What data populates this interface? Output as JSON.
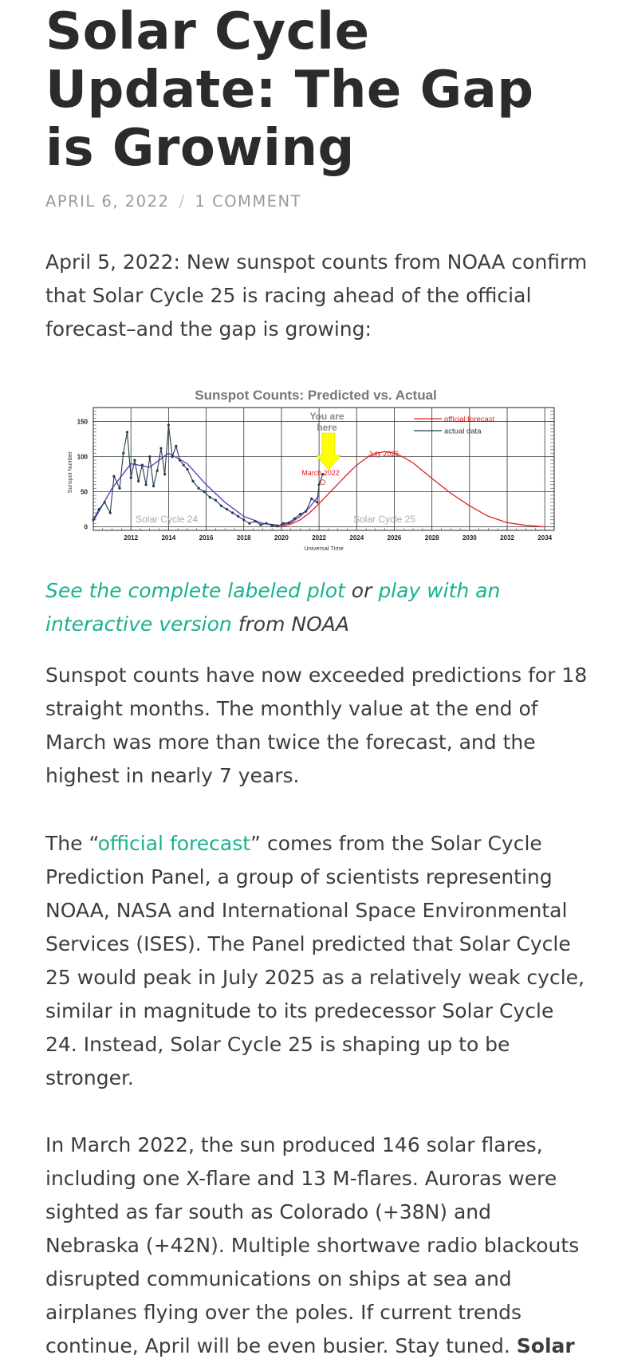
{
  "article": {
    "title": "Solar Cycle Update: The Gap is Growing",
    "date": "APRIL 6, 2022",
    "separator": "/",
    "comments": "1 COMMENT",
    "intro": "April 5, 2022: New sunspot counts from NOAA confirm that Solar Cycle 25 is racing ahead of the official forecast–and the gap is growing:",
    "caption": {
      "link1": "See the complete labeled plot",
      "or": " or ",
      "link2": "play with an interactive version",
      "from": " from NOAA"
    },
    "p2": "Sunspot counts have now exceeded predictions for 18 straight months. The monthly value at the end of March was more than twice the forecast, and the highest in nearly 7 years.",
    "p3": {
      "before": "The “",
      "link": "official forecast",
      "after": "” comes from the Solar Cycle Prediction Panel, a group of scientists representing NOAA, NASA and International Space Environmental Services (ISES). The Panel predicted that Solar Cycle 25 would peak in July 2025 as a relatively weak cycle, similar in magnitude to its predecessor Solar Cycle 24. Instead, Solar Cycle 25 is shaping up to be stronger."
    },
    "p4": {
      "text": "In March 2022, the sun produced 146 solar flares, including one X-flare and 13 M-flares. Auroras were sighted as far south as Colorado (+38N) and Nebraska (+42N). Multiple shortwave radio blackouts disrupted communications on ships at sea and airplanes flying over the poles. If current trends continue, April will be even busier. Stay tuned. ",
      "bold": "Solar"
    }
  },
  "chart_data": {
    "type": "line",
    "title": "Sunspot Counts: Predicted vs. Actual",
    "xlabel": "Universal Time",
    "ylabel": "Sunspot Number",
    "xlim": [
      2010.0,
      2034.5
    ],
    "ylim": [
      -5,
      170
    ],
    "x_ticks": [
      2012,
      2014,
      2016,
      2018,
      2020,
      2022,
      2024,
      2026,
      2028,
      2030,
      2032,
      2034
    ],
    "y_ticks": [
      0,
      50,
      100,
      150
    ],
    "grid": true,
    "legend": "top-right",
    "colors": {
      "forecast": "#e02020",
      "actual": "#1f3d4a",
      "smoothed": "#6a3dc8",
      "arrow": "#ffff00"
    },
    "series": [
      {
        "name": "official forecast",
        "x": [
          2019.9,
          2020.5,
          2021.0,
          2021.5,
          2022.0,
          2022.5,
          2023.0,
          2023.5,
          2024.0,
          2024.5,
          2025.0,
          2025.5,
          2026.0,
          2026.5,
          2027.0,
          2027.5,
          2028.0,
          2029.0,
          2030.0,
          2031.0,
          2032.0,
          2033.0,
          2034.0
        ],
        "values": [
          0,
          4,
          10,
          20,
          33,
          47,
          61,
          75,
          88,
          98,
          105,
          107,
          105,
          99,
          91,
          80,
          69,
          48,
          30,
          15,
          6,
          2,
          0
        ]
      },
      {
        "name": "actual data",
        "x": [
          2010.0,
          2010.3,
          2010.6,
          2010.9,
          2011.1,
          2011.4,
          2011.6,
          2011.8,
          2012.0,
          2012.2,
          2012.4,
          2012.6,
          2012.8,
          2013.0,
          2013.2,
          2013.4,
          2013.6,
          2013.8,
          2014.0,
          2014.2,
          2014.4,
          2014.6,
          2014.8,
          2015.0,
          2015.3,
          2015.6,
          2015.9,
          2016.2,
          2016.5,
          2016.8,
          2017.1,
          2017.4,
          2017.7,
          2018.0,
          2018.3,
          2018.6,
          2018.9,
          2019.2,
          2019.5,
          2019.8,
          2020.1,
          2020.4,
          2020.7,
          2021.0,
          2021.3,
          2021.6,
          2021.9,
          2022.0,
          2022.2
        ],
        "values": [
          10,
          25,
          35,
          20,
          72,
          55,
          105,
          135,
          70,
          95,
          65,
          88,
          60,
          100,
          58,
          80,
          112,
          75,
          145,
          100,
          115,
          95,
          88,
          82,
          65,
          55,
          50,
          42,
          38,
          30,
          25,
          20,
          15,
          10,
          5,
          8,
          3,
          5,
          2,
          1,
          5,
          6,
          12,
          18,
          22,
          40,
          35,
          60,
          75
        ]
      },
      {
        "name": "",
        "x": [
          2010.0,
          2011.0,
          2012.0,
          2013.0,
          2014.0,
          2015.0,
          2016.0,
          2017.0,
          2018.0,
          2019.0,
          2019.9,
          2020.5,
          2021.0,
          2021.5,
          2022.0
        ],
        "values": [
          8,
          55,
          90,
          85,
          105,
          90,
          60,
          35,
          15,
          5,
          2,
          6,
          15,
          28,
          45
        ]
      }
    ],
    "annotations": {
      "you_are_here": "You are here",
      "march": "March 2022",
      "july": "July 2025",
      "cycle24": "Solar Cycle 24",
      "cycle25": "Solar Cycle 25"
    }
  }
}
